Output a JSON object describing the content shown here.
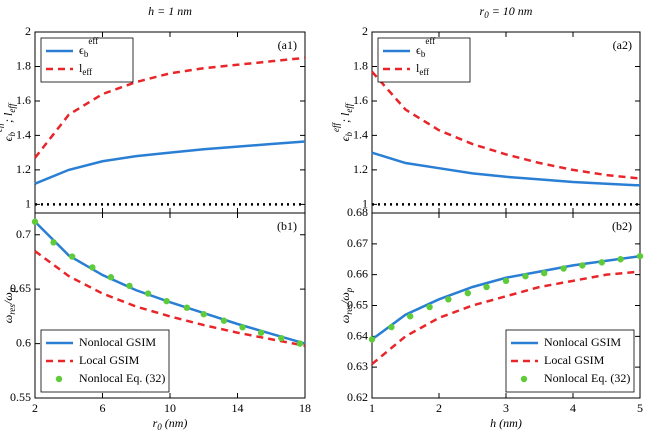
{
  "chart_data": [
    {
      "type": "line",
      "title": "h = 1 nm",
      "panel_label": "(a1)",
      "ylabel": "ϵ_{b}^{eff}; l_{eff}",
      "xlim": [
        2,
        18
      ],
      "xticks": [
        2,
        6,
        10,
        14,
        18
      ],
      "ylim": [
        0.95,
        2
      ],
      "yticks": [
        1,
        1.2,
        1.4,
        1.6,
        1.8,
        2
      ],
      "hline": 1,
      "legend": "upper left",
      "series": [
        {
          "name": "ϵ_{b}^{eff}",
          "color": "#2a7fd4",
          "style": "solid",
          "x": [
            2,
            4,
            6,
            8,
            10,
            12,
            14,
            16,
            18
          ],
          "values": [
            1.12,
            1.2,
            1.25,
            1.28,
            1.3,
            1.32,
            1.335,
            1.35,
            1.365
          ]
        },
        {
          "name": "l_{eff}",
          "color": "#e8262a",
          "style": "dashed",
          "x": [
            2,
            4,
            6,
            8,
            10,
            12,
            14,
            16,
            18
          ],
          "values": [
            1.27,
            1.52,
            1.64,
            1.71,
            1.76,
            1.79,
            1.81,
            1.83,
            1.85
          ]
        }
      ]
    },
    {
      "type": "line",
      "panel_label": "(b1)",
      "ylabel": "ω_{res}/ω_{p}",
      "xlabel": "r_{0} (nm)",
      "xlim": [
        2,
        18
      ],
      "xticks": [
        2,
        6,
        10,
        14,
        18
      ],
      "ylim": [
        0.55,
        0.72
      ],
      "yticks": [
        0.55,
        0.6,
        0.65,
        0.7
      ],
      "legend": "lower left",
      "series": [
        {
          "name": "Nonlocal GSIM",
          "color": "#2a7fd4",
          "style": "solid",
          "x": [
            2,
            4,
            6,
            8,
            10,
            12,
            14,
            16,
            18
          ],
          "values": [
            0.712,
            0.681,
            0.663,
            0.649,
            0.638,
            0.628,
            0.618,
            0.609,
            0.6
          ]
        },
        {
          "name": "Local GSIM",
          "color": "#e8262a",
          "style": "dashed",
          "x": [
            2,
            4,
            6,
            8,
            10,
            12,
            14,
            16,
            18
          ],
          "values": [
            0.685,
            0.662,
            0.646,
            0.634,
            0.625,
            0.617,
            0.61,
            0.604,
            0.598
          ]
        },
        {
          "name": "Nonlocal Eq. (32)",
          "color": "#5ecb3a",
          "style": "dots",
          "x": [
            2,
            3.1,
            4.2,
            5.4,
            6.5,
            7.6,
            8.7,
            9.8,
            11,
            12,
            13.2,
            14.3,
            15.4,
            16.6,
            17.7
          ],
          "values": [
            0.712,
            0.693,
            0.68,
            0.67,
            0.661,
            0.653,
            0.646,
            0.639,
            0.633,
            0.627,
            0.621,
            0.615,
            0.61,
            0.605,
            0.6
          ]
        }
      ]
    },
    {
      "type": "line",
      "title": "r_{0} = 10 nm",
      "panel_label": "(a2)",
      "ylabel": "ϵ_{b}^{eff}; l_{eff}",
      "xlim": [
        1,
        5
      ],
      "xticks": [
        1,
        2,
        3,
        4,
        5
      ],
      "ylim": [
        0.95,
        2
      ],
      "yticks": [
        1,
        1.2,
        1.4,
        1.6,
        1.8,
        2
      ],
      "hline": 1,
      "legend": "upper left",
      "series": [
        {
          "name": "ϵ_{b}^{eff}",
          "color": "#2a7fd4",
          "style": "solid",
          "x": [
            1,
            1.5,
            2,
            2.5,
            3,
            3.5,
            4,
            4.5,
            5
          ],
          "values": [
            1.3,
            1.24,
            1.21,
            1.18,
            1.16,
            1.145,
            1.13,
            1.12,
            1.11
          ]
        },
        {
          "name": "l_{eff}",
          "color": "#e8262a",
          "style": "dashed",
          "x": [
            1,
            1.5,
            2,
            2.5,
            3,
            3.5,
            4,
            4.5,
            5
          ],
          "values": [
            1.77,
            1.55,
            1.43,
            1.35,
            1.29,
            1.24,
            1.2,
            1.17,
            1.15
          ]
        }
      ]
    },
    {
      "type": "line",
      "panel_label": "(b2)",
      "ylabel": "ω_{res}/ω_{p}",
      "xlabel": "h (nm)",
      "xlim": [
        1,
        5
      ],
      "xticks": [
        1,
        2,
        3,
        4,
        5
      ],
      "ylim": [
        0.62,
        0.68
      ],
      "yticks": [
        0.62,
        0.63,
        0.64,
        0.65,
        0.66,
        0.67,
        0.68
      ],
      "legend": "lower right",
      "series": [
        {
          "name": "Nonlocal GSIM",
          "color": "#2a7fd4",
          "style": "solid",
          "x": [
            1,
            1.5,
            2,
            2.5,
            3,
            3.5,
            4,
            4.5,
            5
          ],
          "values": [
            0.639,
            0.647,
            0.652,
            0.656,
            0.659,
            0.661,
            0.663,
            0.6645,
            0.666
          ]
        },
        {
          "name": "Local GSIM",
          "color": "#e8262a",
          "style": "dashed",
          "x": [
            1,
            1.5,
            2,
            2.5,
            3,
            3.5,
            4,
            4.5,
            5
          ],
          "values": [
            0.631,
            0.64,
            0.646,
            0.65,
            0.653,
            0.656,
            0.658,
            0.66,
            0.661
          ]
        },
        {
          "name": "Nonlocal Eq. (32)",
          "color": "#5ecb3a",
          "style": "dots",
          "x": [
            1,
            1.29,
            1.57,
            1.86,
            2.14,
            2.43,
            2.71,
            3,
            3.29,
            3.57,
            3.86,
            4.14,
            4.43,
            4.71,
            5
          ],
          "values": [
            0.639,
            0.643,
            0.6465,
            0.6495,
            0.652,
            0.654,
            0.656,
            0.658,
            0.6595,
            0.6605,
            0.662,
            0.663,
            0.664,
            0.665,
            0.666
          ]
        }
      ]
    }
  ]
}
